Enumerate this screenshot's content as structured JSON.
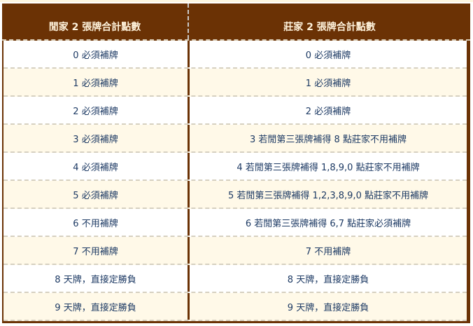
{
  "colors": {
    "header_bg": "#6b3205",
    "header_text": "#fff3dc",
    "row_alt": "#fff9e8",
    "text": "#1d3a64"
  },
  "headers": [
    "閒家 2 張牌合計點數",
    "莊家 2 張牌合計點數"
  ],
  "rows": [
    [
      "0 必須補牌",
      "0 必須補牌"
    ],
    [
      "1 必須補牌",
      "1 必須補牌"
    ],
    [
      "2 必須補牌",
      "2 必須補牌"
    ],
    [
      "3 必須補牌",
      "3 若閒第三張牌補得 8 點莊家不用補牌"
    ],
    [
      "4 必須補牌",
      "4 若閒第三張牌補得 1,8,9,0 點莊家不用補牌"
    ],
    [
      "5 必須補牌",
      "5 若閒第三張牌補得 1,2,3,8,9,0 點莊家不用補牌"
    ],
    [
      "6 不用補牌",
      "6 若閒第三張牌補得 6,7 點莊家必須補牌"
    ],
    [
      "7 不用補牌",
      "7 不用補牌"
    ],
    [
      "8 天牌，直接定勝負",
      "8 天牌，直接定勝負"
    ],
    [
      "9 天牌，直接定勝負",
      "9 天牌，直接定勝負"
    ]
  ]
}
